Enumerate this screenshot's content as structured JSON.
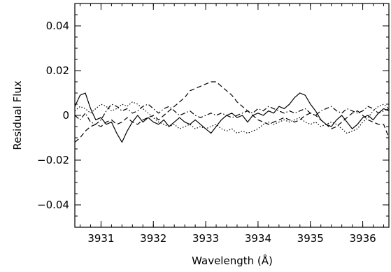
{
  "chart_data": {
    "type": "line",
    "title": "",
    "xlabel": "Wavelength (Å)",
    "ylabel": "Residual Flux",
    "xlim": [
      3930.5,
      3936.5
    ],
    "ylim": [
      -0.05,
      0.05
    ],
    "x_ticks": [
      {
        "value": 3931,
        "label": "3931"
      },
      {
        "value": 3932,
        "label": "3932"
      },
      {
        "value": 3933,
        "label": "3933"
      },
      {
        "value": 3934,
        "label": "3934"
      },
      {
        "value": 3935,
        "label": "3935"
      },
      {
        "value": 3936,
        "label": "3936"
      }
    ],
    "y_ticks": [
      {
        "value": -0.04,
        "label": "−0.04"
      },
      {
        "value": -0.02,
        "label": "−0.02"
      },
      {
        "value": 0,
        "label": "0"
      },
      {
        "value": 0.02,
        "label": "0.02"
      },
      {
        "value": 0.04,
        "label": "0.04"
      }
    ],
    "x_minor_step": 0.2,
    "y_minor_step": 0.005,
    "grid": false,
    "legend": "none",
    "series": [
      {
        "style": "solid",
        "x": [
          3930.5,
          3930.6,
          3930.7,
          3930.8,
          3930.9,
          3931.0,
          3931.1,
          3931.2,
          3931.3,
          3931.4,
          3931.5,
          3931.6,
          3931.7,
          3931.8,
          3931.9,
          3932.0,
          3932.1,
          3932.2,
          3932.3,
          3932.4,
          3932.5,
          3932.6,
          3932.7,
          3932.8,
          3932.9,
          3933.0,
          3933.1,
          3933.2,
          3933.3,
          3933.4,
          3933.5,
          3933.6,
          3933.7,
          3933.8,
          3933.9,
          3934.0,
          3934.1,
          3934.2,
          3934.3,
          3934.4,
          3934.5,
          3934.6,
          3934.7,
          3934.8,
          3934.9,
          3935.0,
          3935.1,
          3935.2,
          3935.3,
          3935.4,
          3935.5,
          3935.6,
          3935.7,
          3935.8,
          3935.9,
          3936.0,
          3936.1,
          3936.2,
          3936.3,
          3936.4,
          3936.5
        ],
        "y": [
          0.004,
          0.009,
          0.01,
          0.003,
          -0.002,
          -0.001,
          -0.004,
          -0.003,
          -0.008,
          -0.012,
          -0.007,
          -0.003,
          0.0,
          -0.003,
          -0.001,
          -0.003,
          -0.004,
          -0.002,
          -0.005,
          -0.003,
          -0.001,
          -0.003,
          -0.004,
          -0.002,
          -0.004,
          -0.006,
          -0.008,
          -0.005,
          -0.002,
          0.0,
          0.001,
          -0.001,
          0.0,
          -0.003,
          0.0,
          0.001,
          0.0,
          0.002,
          0.001,
          0.004,
          0.003,
          0.005,
          0.008,
          0.01,
          0.009,
          0.005,
          0.002,
          -0.002,
          -0.004,
          -0.005,
          -0.002,
          0.0,
          -0.003,
          -0.006,
          -0.004,
          -0.001,
          0.0,
          -0.002,
          0.001,
          0.003,
          0.002
        ]
      },
      {
        "style": "dashed",
        "x": [
          3930.5,
          3930.6,
          3930.7,
          3930.8,
          3930.9,
          3931.0,
          3931.1,
          3931.2,
          3931.3,
          3931.4,
          3931.5,
          3931.6,
          3931.7,
          3931.8,
          3931.9,
          3932.0,
          3932.1,
          3932.2,
          3932.3,
          3932.4,
          3932.5,
          3932.6,
          3932.7,
          3932.8,
          3932.9,
          3933.0,
          3933.1,
          3933.2,
          3933.3,
          3933.4,
          3933.5,
          3933.6,
          3933.7,
          3933.8,
          3933.9,
          3934.0,
          3934.1,
          3934.2,
          3934.3,
          3934.4,
          3934.5,
          3934.6,
          3934.7,
          3934.8,
          3934.9,
          3935.0,
          3935.1,
          3935.2,
          3935.3,
          3935.4,
          3935.5,
          3935.6,
          3935.7,
          3935.8,
          3935.9,
          3936.0,
          3936.1,
          3936.2,
          3936.3,
          3936.4,
          3936.5
        ],
        "y": [
          -0.012,
          -0.01,
          -0.007,
          -0.005,
          -0.004,
          -0.005,
          -0.003,
          -0.002,
          -0.004,
          -0.003,
          -0.001,
          -0.003,
          -0.004,
          -0.002,
          -0.001,
          0.0,
          -0.002,
          0.0,
          0.002,
          0.004,
          0.006,
          0.008,
          0.011,
          0.012,
          0.013,
          0.014,
          0.015,
          0.015,
          0.013,
          0.011,
          0.009,
          0.006,
          0.004,
          0.002,
          0.0,
          -0.002,
          -0.003,
          -0.004,
          -0.003,
          -0.002,
          -0.001,
          -0.002,
          -0.003,
          -0.002,
          0.0,
          0.001,
          0.0,
          -0.002,
          -0.004,
          -0.006,
          -0.005,
          -0.003,
          -0.001,
          0.001,
          0.002,
          0.0,
          -0.002,
          -0.003,
          -0.004,
          -0.004,
          -0.01
        ]
      },
      {
        "style": "dotted",
        "x": [
          3930.5,
          3930.6,
          3930.7,
          3930.8,
          3930.9,
          3931.0,
          3931.1,
          3931.2,
          3931.3,
          3931.4,
          3931.5,
          3931.6,
          3931.7,
          3931.8,
          3931.9,
          3932.0,
          3932.1,
          3932.2,
          3932.3,
          3932.4,
          3932.5,
          3932.6,
          3932.7,
          3932.8,
          3932.9,
          3933.0,
          3933.1,
          3933.2,
          3933.3,
          3933.4,
          3933.5,
          3933.6,
          3933.7,
          3933.8,
          3933.9,
          3934.0,
          3934.1,
          3934.2,
          3934.3,
          3934.4,
          3934.5,
          3934.6,
          3934.7,
          3934.8,
          3934.9,
          3935.0,
          3935.1,
          3935.2,
          3935.3,
          3935.4,
          3935.5,
          3935.6,
          3935.7,
          3935.8,
          3935.9,
          3936.0,
          3936.1,
          3936.2,
          3936.3,
          3936.4,
          3936.5
        ],
        "y": [
          0.002,
          0.004,
          0.003,
          0.001,
          0.003,
          0.005,
          0.004,
          0.002,
          0.003,
          0.005,
          0.004,
          0.006,
          0.005,
          0.003,
          0.001,
          -0.001,
          -0.003,
          -0.004,
          -0.005,
          -0.004,
          -0.006,
          -0.005,
          -0.004,
          -0.006,
          -0.005,
          -0.006,
          -0.005,
          -0.004,
          -0.006,
          -0.007,
          -0.006,
          -0.008,
          -0.007,
          -0.008,
          -0.007,
          -0.006,
          -0.004,
          -0.003,
          -0.004,
          -0.003,
          -0.002,
          -0.003,
          -0.002,
          -0.001,
          -0.003,
          -0.004,
          -0.003,
          -0.005,
          -0.004,
          -0.003,
          -0.004,
          -0.006,
          -0.008,
          -0.007,
          -0.006,
          -0.003,
          -0.001,
          0.002,
          0.004,
          0.005,
          0.003
        ]
      },
      {
        "style": "dashdot",
        "x": [
          3930.5,
          3930.6,
          3930.7,
          3930.8,
          3930.9,
          3931.0,
          3931.1,
          3931.2,
          3931.3,
          3931.4,
          3931.5,
          3931.6,
          3931.7,
          3931.8,
          3931.9,
          3932.0,
          3932.1,
          3932.2,
          3932.3,
          3932.4,
          3932.5,
          3932.6,
          3932.7,
          3932.8,
          3932.9,
          3933.0,
          3933.1,
          3933.2,
          3933.3,
          3933.4,
          3933.5,
          3933.6,
          3933.7,
          3933.8,
          3933.9,
          3934.0,
          3934.1,
          3934.2,
          3934.3,
          3934.4,
          3934.5,
          3934.6,
          3934.7,
          3934.8,
          3934.9,
          3935.0,
          3935.1,
          3935.2,
          3935.3,
          3935.4,
          3935.5,
          3935.6,
          3935.7,
          3935.8,
          3935.9,
          3936.0,
          3936.1,
          3936.2,
          3936.3,
          3936.4,
          3936.5
        ],
        "y": [
          0.0,
          -0.002,
          0.001,
          -0.003,
          -0.004,
          -0.002,
          0.002,
          0.005,
          0.004,
          0.002,
          0.003,
          0.001,
          0.002,
          0.004,
          0.005,
          0.003,
          0.001,
          0.003,
          0.004,
          0.002,
          0.0,
          0.001,
          0.002,
          0.0,
          -0.001,
          0.0,
          0.001,
          0.0,
          0.001,
          0.0,
          -0.001,
          0.0,
          0.001,
          0.002,
          0.001,
          0.003,
          0.002,
          0.004,
          0.003,
          0.002,
          0.001,
          0.002,
          0.001,
          0.002,
          0.003,
          0.001,
          0.0,
          0.002,
          0.003,
          0.004,
          0.002,
          0.001,
          0.003,
          0.002,
          0.001,
          0.002,
          0.004,
          0.003,
          0.001,
          0.002,
          0.003
        ]
      }
    ]
  }
}
